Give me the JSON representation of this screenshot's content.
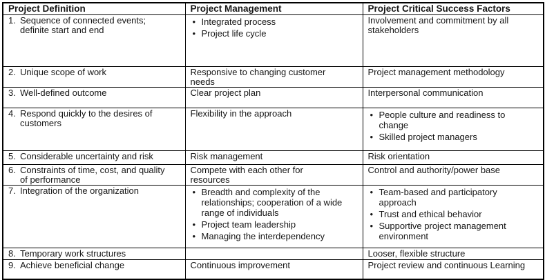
{
  "page": {
    "background": "#ffffff",
    "text_color": "#161616",
    "border_color": "#000000",
    "bullet_glyph": "•"
  },
  "table": {
    "headers": [
      "Project Definition",
      "Project Management",
      "Project Critical Success Factors"
    ],
    "rows": [
      {
        "num": "1.",
        "definition": "Sequence of connected events; definite start and end",
        "management": {
          "items": [
            "Integrated process",
            "Project life cycle"
          ]
        },
        "success_factors": {
          "text": "Involvement and commitment by all stakeholders"
        }
      },
      {
        "num": "2.",
        "definition": "Unique scope of work",
        "management": {
          "text": "Responsive to changing customer needs"
        },
        "success_factors": {
          "text": "Project management methodology"
        }
      },
      {
        "num": "3.",
        "definition": "Well-defined outcome",
        "management": {
          "text": "Clear project plan"
        },
        "success_factors": {
          "text": "Interpersonal communication"
        }
      },
      {
        "num": "4.",
        "definition": "Respond quickly to the desires of customers",
        "management": {
          "text": "Flexibility in the approach"
        },
        "success_factors": {
          "items": [
            "People culture and readiness to change",
            "Skilled project managers"
          ]
        }
      },
      {
        "num": "5.",
        "definition": "Considerable uncertainty and risk",
        "management": {
          "text": "Risk management"
        },
        "success_factors": {
          "text": "Risk orientation"
        }
      },
      {
        "num": "6.",
        "definition": "Constraints of time, cost, and quality of performance",
        "management": {
          "text": "Compete with each other for resources"
        },
        "success_factors": {
          "text": "Control and authority/power base"
        }
      },
      {
        "num": "7.",
        "definition": "Integration of the organization",
        "management": {
          "items": [
            "Breadth and complexity of the relationships; cooperation of a wide range of individuals",
            "Project team leadership",
            "Managing the interdependency"
          ]
        },
        "success_factors": {
          "items": [
            "Team-based and participatory approach",
            "Trust and ethical behavior",
            "Supportive project management environment"
          ]
        }
      },
      {
        "num": "8.",
        "definition": "Temporary work structures",
        "management": {
          "text": ""
        },
        "success_factors": {
          "text": "Looser, flexible structure"
        }
      },
      {
        "num": "9.",
        "definition": "Achieve beneficial change",
        "management": {
          "text": "Continuous improvement"
        },
        "success_factors": {
          "text": "Project review and continuous Learning"
        }
      }
    ]
  }
}
